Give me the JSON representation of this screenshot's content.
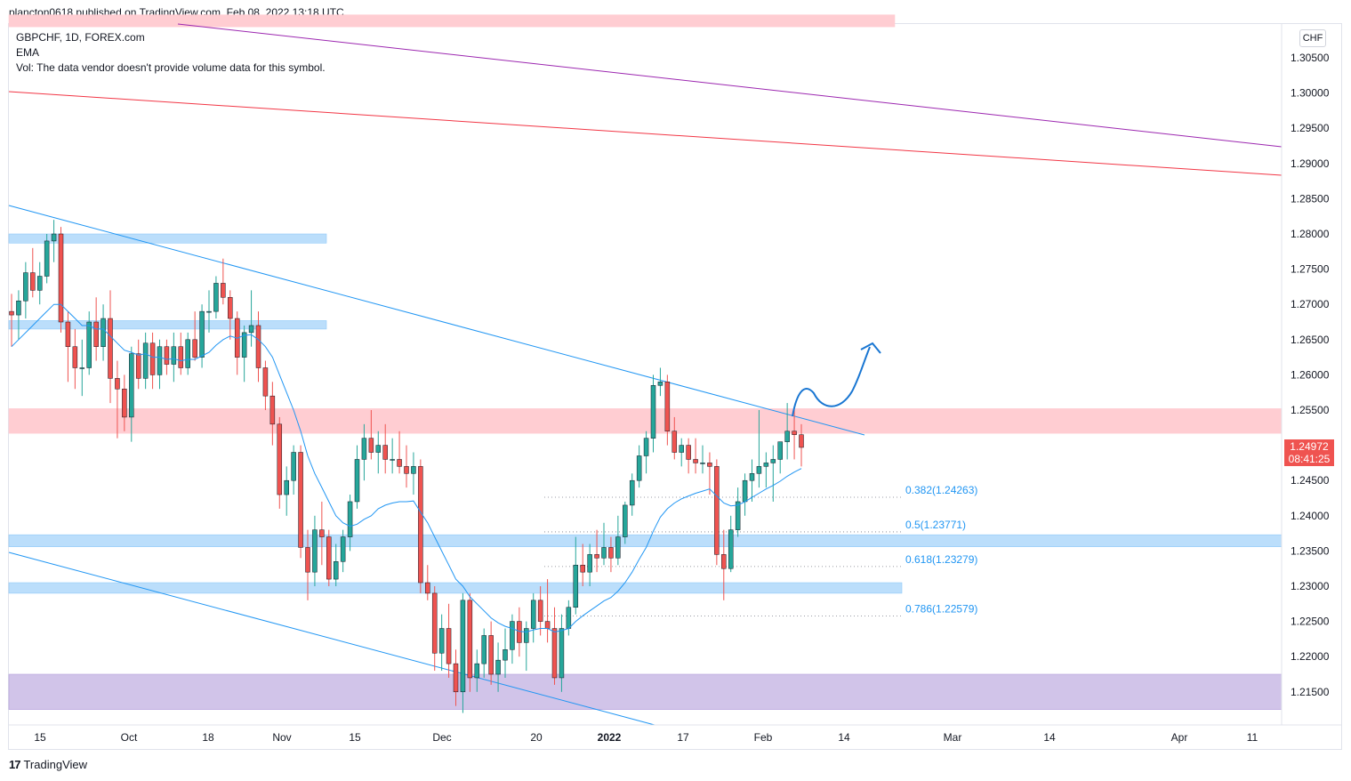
{
  "header": {
    "text": "plancton0618 published on TradingView.com, Feb 08, 2022 13:18 UTC"
  },
  "legend": {
    "line1": "GBPCHF, 1D, FOREX.com",
    "line2": "EMA",
    "line3": "Vol: The data vendor doesn't provide volume data for this symbol."
  },
  "currency_label": "CHF",
  "last_price": {
    "value": "1.24972",
    "countdown": "08:41:25",
    "color": "#ef5350"
  },
  "footer": {
    "logo_glyph": "17",
    "brand": "TradingView"
  },
  "colors": {
    "up": "#26a69a",
    "down": "#ef5350",
    "ema": "#2196f3",
    "channel": "#2196f3",
    "purple_line": "#9c27b0",
    "red_line": "#f23645",
    "blue_zone": "#bbdefb",
    "red_zone": "#ffcdd2",
    "purple_zone": "#d1c4e9",
    "arrow": "#1976d2"
  },
  "chart_data": {
    "type": "candlestick",
    "symbol": "GBPCHF",
    "timeframe": "1D",
    "ylim": [
      1.2111,
      1.3125
    ],
    "yticks": [
      "1.30500",
      "1.30000",
      "1.29500",
      "1.29000",
      "1.28500",
      "1.28000",
      "1.27500",
      "1.27000",
      "1.26500",
      "1.26000",
      "1.25500",
      "1.25000",
      "1.24500",
      "1.24000",
      "1.23500",
      "1.23000",
      "1.22500",
      "1.22000",
      "1.21500"
    ],
    "xticks": [
      "15",
      "Oct",
      "18",
      "Nov",
      "15",
      "Dec",
      "20",
      "2022",
      "17",
      "Feb",
      "14",
      "Mar",
      "14",
      "Apr",
      "11"
    ],
    "candles": [
      [
        1.269,
        1.2715,
        1.264,
        1.2685
      ],
      [
        1.2685,
        1.272,
        1.265,
        1.2705
      ],
      [
        1.2705,
        1.276,
        1.268,
        1.2745
      ],
      [
        1.2745,
        1.278,
        1.271,
        1.272
      ],
      [
        1.272,
        1.276,
        1.27,
        1.274
      ],
      [
        1.274,
        1.28,
        1.273,
        1.279
      ],
      [
        1.279,
        1.282,
        1.276,
        1.28
      ],
      [
        1.28,
        1.281,
        1.266,
        1.2675
      ],
      [
        1.2675,
        1.269,
        1.259,
        1.264
      ],
      [
        1.264,
        1.2665,
        1.258,
        1.261
      ],
      [
        1.261,
        1.265,
        1.257,
        1.261
      ],
      [
        1.261,
        1.269,
        1.26,
        1.2675
      ],
      [
        1.2675,
        1.271,
        1.262,
        1.264
      ],
      [
        1.264,
        1.27,
        1.262,
        1.268
      ],
      [
        1.268,
        1.272,
        1.256,
        1.2595
      ],
      [
        1.2595,
        1.262,
        1.251,
        1.258
      ],
      [
        1.258,
        1.26,
        1.252,
        1.254
      ],
      [
        1.254,
        1.264,
        1.2505,
        1.263
      ],
      [
        1.263,
        1.265,
        1.258,
        1.2595
      ],
      [
        1.2595,
        1.266,
        1.258,
        1.2645
      ],
      [
        1.2645,
        1.266,
        1.258,
        1.26
      ],
      [
        1.26,
        1.265,
        1.258,
        1.264
      ],
      [
        1.264,
        1.265,
        1.26,
        1.2615
      ],
      [
        1.2615,
        1.266,
        1.259,
        1.264
      ],
      [
        1.264,
        1.266,
        1.26,
        1.261
      ],
      [
        1.261,
        1.266,
        1.26,
        1.265
      ],
      [
        1.265,
        1.269,
        1.262,
        1.2625
      ],
      [
        1.2625,
        1.27,
        1.261,
        1.269
      ],
      [
        1.269,
        1.272,
        1.266,
        1.269
      ],
      [
        1.269,
        1.274,
        1.268,
        1.273
      ],
      [
        1.273,
        1.2765,
        1.27,
        1.271
      ],
      [
        1.271,
        1.272,
        1.265,
        1.268
      ],
      [
        1.268,
        1.269,
        1.26,
        1.2625
      ],
      [
        1.2625,
        1.267,
        1.259,
        1.266
      ],
      [
        1.266,
        1.272,
        1.264,
        1.267
      ],
      [
        1.267,
        1.269,
        1.259,
        1.261
      ],
      [
        1.261,
        1.262,
        1.255,
        1.257
      ],
      [
        1.257,
        1.259,
        1.25,
        1.253
      ],
      [
        1.253,
        1.254,
        1.241,
        1.243
      ],
      [
        1.243,
        1.247,
        1.24,
        1.245
      ],
      [
        1.245,
        1.25,
        1.243,
        1.249
      ],
      [
        1.249,
        1.25,
        1.234,
        1.2355
      ],
      [
        1.2355,
        1.238,
        1.228,
        1.232
      ],
      [
        1.232,
        1.24,
        1.23,
        1.238
      ],
      [
        1.238,
        1.242,
        1.233,
        1.237
      ],
      [
        1.237,
        1.238,
        1.23,
        1.231
      ],
      [
        1.231,
        1.236,
        1.23,
        1.2335
      ],
      [
        1.2335,
        1.238,
        1.232,
        1.237
      ],
      [
        1.237,
        1.243,
        1.235,
        1.242
      ],
      [
        1.242,
        1.25,
        1.241,
        1.248
      ],
      [
        1.248,
        1.253,
        1.245,
        1.251
      ],
      [
        1.251,
        1.255,
        1.248,
        1.249
      ],
      [
        1.249,
        1.252,
        1.246,
        1.25
      ],
      [
        1.25,
        1.253,
        1.246,
        1.248
      ],
      [
        1.248,
        1.251,
        1.246,
        1.248
      ],
      [
        1.248,
        1.252,
        1.246,
        1.247
      ],
      [
        1.247,
        1.25,
        1.244,
        1.246
      ],
      [
        1.246,
        1.249,
        1.243,
        1.247
      ],
      [
        1.247,
        1.248,
        1.229,
        1.2305
      ],
      [
        1.2305,
        1.233,
        1.228,
        1.229
      ],
      [
        1.229,
        1.23,
        1.218,
        1.2205
      ],
      [
        1.2205,
        1.226,
        1.218,
        1.224
      ],
      [
        1.224,
        1.2275,
        1.217,
        1.219
      ],
      [
        1.219,
        1.221,
        1.213,
        1.215
      ],
      [
        1.215,
        1.229,
        1.212,
        1.228
      ],
      [
        1.228,
        1.229,
        1.215,
        1.217
      ],
      [
        1.217,
        1.221,
        1.215,
        1.219
      ],
      [
        1.219,
        1.224,
        1.217,
        1.223
      ],
      [
        1.223,
        1.225,
        1.216,
        1.2175
      ],
      [
        1.2175,
        1.222,
        1.215,
        1.2195
      ],
      [
        1.2195,
        1.224,
        1.217,
        1.221
      ],
      [
        1.221,
        1.226,
        1.219,
        1.225
      ],
      [
        1.225,
        1.227,
        1.22,
        1.222
      ],
      [
        1.222,
        1.225,
        1.218,
        1.224
      ],
      [
        1.224,
        1.229,
        1.222,
        1.228
      ],
      [
        1.228,
        1.23,
        1.223,
        1.225
      ],
      [
        1.225,
        1.231,
        1.222,
        1.224
      ],
      [
        1.224,
        1.227,
        1.216,
        1.217
      ],
      [
        1.217,
        1.226,
        1.215,
        1.224
      ],
      [
        1.224,
        1.228,
        1.223,
        1.227
      ],
      [
        1.227,
        1.237,
        1.226,
        1.233
      ],
      [
        1.233,
        1.236,
        1.23,
        1.232
      ],
      [
        1.232,
        1.236,
        1.23,
        1.2345
      ],
      [
        1.2345,
        1.238,
        1.232,
        1.234
      ],
      [
        1.234,
        1.239,
        1.233,
        1.2355
      ],
      [
        1.2355,
        1.237,
        1.232,
        1.234
      ],
      [
        1.234,
        1.24,
        1.233,
        1.237
      ],
      [
        1.237,
        1.242,
        1.236,
        1.2415
      ],
      [
        1.2415,
        1.246,
        1.24,
        1.245
      ],
      [
        1.245,
        1.25,
        1.244,
        1.2485
      ],
      [
        1.2485,
        1.252,
        1.246,
        1.251
      ],
      [
        1.251,
        1.26,
        1.249,
        1.2585
      ],
      [
        1.2585,
        1.261,
        1.257,
        1.259
      ],
      [
        1.259,
        1.26,
        1.25,
        1.252
      ],
      [
        1.252,
        1.254,
        1.248,
        1.249
      ],
      [
        1.249,
        1.251,
        1.247,
        1.25
      ],
      [
        1.25,
        1.251,
        1.246,
        1.248
      ],
      [
        1.248,
        1.251,
        1.246,
        1.2475
      ],
      [
        1.2475,
        1.25,
        1.246,
        1.2475
      ],
      [
        1.2475,
        1.249,
        1.243,
        1.247
      ],
      [
        1.247,
        1.248,
        1.233,
        1.2345
      ],
      [
        1.2345,
        1.238,
        1.228,
        1.2325
      ],
      [
        1.2325,
        1.24,
        1.232,
        1.238
      ],
      [
        1.238,
        1.244,
        1.237,
        1.242
      ],
      [
        1.242,
        1.246,
        1.24,
        1.245
      ],
      [
        1.245,
        1.248,
        1.242,
        1.246
      ],
      [
        1.246,
        1.255,
        1.244,
        1.247
      ],
      [
        1.247,
        1.249,
        1.244,
        1.2475
      ],
      [
        1.2475,
        1.25,
        1.242,
        1.248
      ],
      [
        1.248,
        1.25,
        1.246,
        1.2505
      ],
      [
        1.2505,
        1.256,
        1.248,
        1.252
      ],
      [
        1.252,
        1.255,
        1.248,
        1.2515
      ],
      [
        1.2515,
        1.253,
        1.247,
        1.2497
      ]
    ],
    "ema": [
      1.264,
      1.265,
      1.266,
      1.267,
      1.268,
      1.269,
      1.27,
      1.27,
      1.269,
      1.268,
      1.267,
      1.267,
      1.2665,
      1.2665,
      1.2655,
      1.2645,
      1.2635,
      1.2632,
      1.2628,
      1.263,
      1.2625,
      1.2625,
      1.2622,
      1.2623,
      1.262,
      1.2622,
      1.2622,
      1.2627,
      1.2632,
      1.2642,
      1.265,
      1.2655,
      1.2652,
      1.2656,
      1.2657,
      1.265,
      1.264,
      1.2625,
      1.26,
      1.2575,
      1.255,
      1.252,
      1.2485,
      1.246,
      1.244,
      1.242,
      1.24,
      1.239,
      1.2385,
      1.2388,
      1.2395,
      1.24,
      1.241,
      1.2415,
      1.2418,
      1.242,
      1.242,
      1.2421,
      1.2405,
      1.239,
      1.237,
      1.235,
      1.233,
      1.231,
      1.23,
      1.2285,
      1.2275,
      1.2265,
      1.2255,
      1.2248,
      1.2243,
      1.224,
      1.2236,
      1.2235,
      1.2238,
      1.224,
      1.224,
      1.2235,
      1.2237,
      1.224,
      1.225,
      1.2258,
      1.2265,
      1.2272,
      1.2279,
      1.2284,
      1.2293,
      1.2305,
      1.232,
      1.2338,
      1.2355,
      1.2378,
      1.2398,
      1.241,
      1.2418,
      1.2424,
      1.2428,
      1.2432,
      1.2435,
      1.2438,
      1.2428,
      1.2418,
      1.2414,
      1.2415,
      1.242,
      1.2426,
      1.2432,
      1.2438,
      1.2443,
      1.2449,
      1.2456,
      1.2462,
      1.2467
    ],
    "fib_levels": [
      {
        "label": "0.382(1.24263)",
        "value": 1.24263
      },
      {
        "label": "0.5(1.23771)",
        "value": 1.23771
      },
      {
        "label": "0.618(1.23279)",
        "value": 1.23279
      },
      {
        "label": "0.786(1.22579)",
        "value": 1.22579
      }
    ],
    "zones": [
      {
        "kind": "red",
        "y1": 1.3111,
        "y2": 1.3094,
        "x_end": 1006
      },
      {
        "kind": "blue",
        "y1": 1.28,
        "y2": 1.2787,
        "x_end": 367
      },
      {
        "kind": "blue",
        "y1": 1.2677,
        "y2": 1.2665,
        "x_end": 367
      },
      {
        "kind": "red",
        "y1": 1.2552,
        "y2": 1.2517,
        "x_end": 1441
      },
      {
        "kind": "blue",
        "y1": 1.2373,
        "y2": 1.2356,
        "x_end": 1441
      },
      {
        "kind": "blue",
        "y1": 1.2305,
        "y2": 1.229,
        "x_end": 1014
      },
      {
        "kind": "purple",
        "y1": 1.2175,
        "y2": 1.2125,
        "x_end": 1441
      }
    ]
  }
}
